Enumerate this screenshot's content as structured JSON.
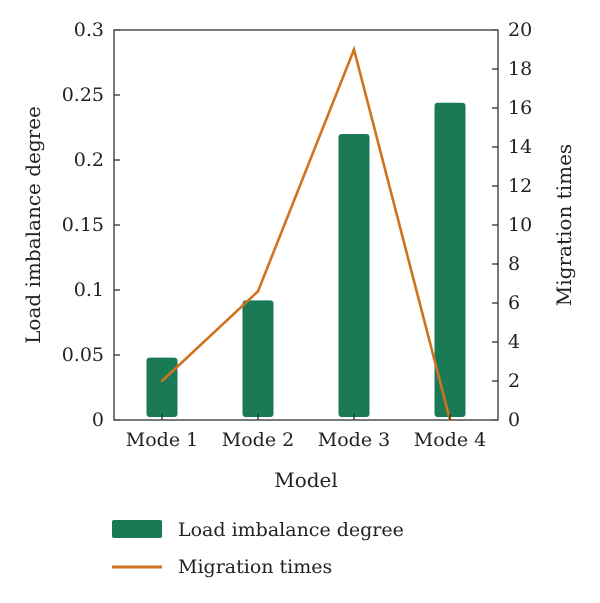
{
  "chart_data": {
    "type": "bar",
    "title": "",
    "categories": [
      "Mode 1",
      "Mode 2",
      "Mode 3",
      "Mode 4"
    ],
    "xlabel": "Model",
    "series": [
      {
        "name": "Load imbalance degree",
        "kind": "bar",
        "axis": "left",
        "values": [
          0.048,
          0.092,
          0.22,
          0.244
        ],
        "color": "#1a7a56"
      },
      {
        "name": "Migration times",
        "kind": "line",
        "axis": "right",
        "values": [
          2.0,
          6.6,
          19.0,
          0.0
        ],
        "color": "#d0731f"
      }
    ],
    "y_left": {
      "label": "Load imbalance degree",
      "ylim": [
        0,
        0.3
      ],
      "ticks": [
        "0",
        "0.05",
        "0.1",
        "0.15",
        "0.2",
        "0.25",
        "0.3"
      ],
      "tick_values": [
        0,
        0.05,
        0.1,
        0.15,
        0.2,
        0.25,
        0.3
      ]
    },
    "y_right": {
      "label": "Migration times",
      "ylim": [
        0,
        20
      ],
      "ticks": [
        "0",
        "2",
        "4",
        "6",
        "8",
        "10",
        "12",
        "14",
        "16",
        "18",
        "20"
      ],
      "tick_values": [
        0,
        2,
        4,
        6,
        8,
        10,
        12,
        14,
        16,
        18,
        20
      ]
    },
    "legend": {
      "position": "bottom",
      "entries": [
        "Load imbalance degree",
        "Migration times"
      ]
    },
    "grid": false
  }
}
